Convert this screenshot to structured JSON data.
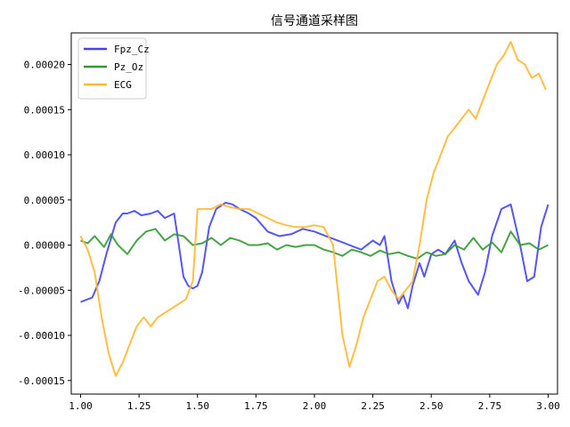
{
  "chart_data": {
    "type": "line",
    "title": "信号通道采样图",
    "xlabel": "",
    "ylabel": "",
    "xlim": [
      0.96,
      3.04
    ],
    "ylim": [
      -0.000165,
      0.000235
    ],
    "xticks": [
      1.0,
      1.25,
      1.5,
      1.75,
      2.0,
      2.25,
      2.5,
      2.75,
      3.0
    ],
    "xtick_labels": [
      "1.00",
      "1.25",
      "1.50",
      "1.75",
      "2.00",
      "2.25",
      "2.50",
      "2.75",
      "3.00"
    ],
    "yticks": [
      -0.00015,
      -0.0001,
      -5e-05,
      0.0,
      5e-05,
      0.0001,
      0.00015,
      0.0002
    ],
    "ytick_labels": [
      "-0.00015",
      "-0.00010",
      "-0.00005",
      "0.00000",
      "0.00005",
      "0.00010",
      "0.00015",
      "0.00020"
    ],
    "grid": false,
    "legend_position": "top-left",
    "series": [
      {
        "name": "Fpz_Cz",
        "color": "#4444ee",
        "x": [
          1.0,
          1.05,
          1.08,
          1.11,
          1.15,
          1.18,
          1.2,
          1.23,
          1.26,
          1.3,
          1.33,
          1.36,
          1.4,
          1.42,
          1.44,
          1.46,
          1.48,
          1.5,
          1.52,
          1.55,
          1.58,
          1.62,
          1.65,
          1.68,
          1.72,
          1.75,
          1.8,
          1.85,
          1.9,
          1.95,
          2.0,
          2.05,
          2.1,
          2.15,
          2.2,
          2.25,
          2.28,
          2.3,
          2.33,
          2.36,
          2.38,
          2.4,
          2.42,
          2.45,
          2.47,
          2.5,
          2.53,
          2.56,
          2.6,
          2.63,
          2.66,
          2.7,
          2.73,
          2.76,
          2.8,
          2.84,
          2.88,
          2.91,
          2.94,
          2.97,
          3.0
        ],
        "y": [
          -6.3e-05,
          -5.8e-05,
          -4e-05,
          -1e-05,
          2.5e-05,
          3.5e-05,
          3.5e-05,
          3.8e-05,
          3.3e-05,
          3.5e-05,
          3.8e-05,
          3e-05,
          3.5e-05,
          0.0,
          -3.5e-05,
          -4.5e-05,
          -4.8e-05,
          -4.5e-05,
          -3e-05,
          2e-05,
          4e-05,
          4.7e-05,
          4.5e-05,
          4e-05,
          3.5e-05,
          3e-05,
          1.5e-05,
          1e-05,
          1.2e-05,
          1.8e-05,
          1.5e-05,
          1e-05,
          5e-06,
          0.0,
          -5e-06,
          5e-06,
          0.0,
          1e-05,
          -4e-05,
          -6.5e-05,
          -5.5e-05,
          -7e-05,
          -4.5e-05,
          -2e-05,
          -3.5e-05,
          -1e-05,
          -5e-06,
          -1e-05,
          5e-06,
          -2e-05,
          -4e-05,
          -5.5e-05,
          -3e-05,
          1e-05,
          4e-05,
          4.5e-05,
          0.0,
          -4e-05,
          -3.5e-05,
          2e-05,
          4.5e-05
        ]
      },
      {
        "name": "Pz_Oz",
        "color": "#339933",
        "x": [
          1.0,
          1.03,
          1.06,
          1.1,
          1.13,
          1.16,
          1.2,
          1.24,
          1.28,
          1.32,
          1.36,
          1.4,
          1.44,
          1.48,
          1.52,
          1.56,
          1.6,
          1.64,
          1.68,
          1.72,
          1.76,
          1.8,
          1.84,
          1.88,
          1.92,
          1.96,
          2.0,
          2.04,
          2.08,
          2.12,
          2.16,
          2.2,
          2.24,
          2.28,
          2.32,
          2.36,
          2.4,
          2.44,
          2.48,
          2.52,
          2.56,
          2.6,
          2.64,
          2.68,
          2.72,
          2.76,
          2.8,
          2.84,
          2.88,
          2.92,
          2.96,
          3.0
        ],
        "y": [
          5e-06,
          2e-06,
          1e-05,
          -2e-06,
          1.2e-05,
          0.0,
          -1e-05,
          5e-06,
          1.5e-05,
          1.8e-05,
          5e-06,
          1.2e-05,
          1e-05,
          0.0,
          2e-06,
          8e-06,
          0.0,
          8e-06,
          5e-06,
          0.0,
          0.0,
          2e-06,
          -5e-06,
          0.0,
          -2e-06,
          0.0,
          0.0,
          -5e-06,
          -8e-06,
          -1.2e-05,
          -5e-06,
          -8e-06,
          -1.2e-05,
          -6e-06,
          -1e-05,
          -8e-06,
          -1.2e-05,
          -1.5e-05,
          -8e-06,
          -1.2e-05,
          -1e-05,
          0.0,
          -5e-06,
          8e-06,
          -5e-06,
          3e-06,
          -8e-06,
          1.5e-05,
          0.0,
          2e-06,
          -5e-06,
          0.0
        ]
      },
      {
        "name": "ECG",
        "color": "#ffb833",
        "x": [
          1.0,
          1.03,
          1.06,
          1.09,
          1.12,
          1.15,
          1.18,
          1.21,
          1.24,
          1.27,
          1.3,
          1.33,
          1.36,
          1.39,
          1.42,
          1.45,
          1.48,
          1.5,
          1.53,
          1.56,
          1.6,
          1.64,
          1.68,
          1.72,
          1.76,
          1.8,
          1.84,
          1.88,
          1.92,
          1.96,
          2.0,
          2.04,
          2.08,
          2.12,
          2.15,
          2.18,
          2.21,
          2.24,
          2.27,
          2.3,
          2.33,
          2.36,
          2.39,
          2.42,
          2.45,
          2.48,
          2.51,
          2.54,
          2.57,
          2.6,
          2.63,
          2.66,
          2.69,
          2.72,
          2.75,
          2.78,
          2.81,
          2.84,
          2.87,
          2.9,
          2.93,
          2.96,
          2.99
        ],
        "y": [
          1e-05,
          -5e-06,
          -3e-05,
          -8e-05,
          -0.00012,
          -0.000145,
          -0.00013,
          -0.00011,
          -9e-05,
          -8e-05,
          -9e-05,
          -8e-05,
          -7.5e-05,
          -7e-05,
          -6.5e-05,
          -6e-05,
          -4e-05,
          4e-05,
          4e-05,
          4e-05,
          4.5e-05,
          4.2e-05,
          4e-05,
          4e-05,
          3.5e-05,
          3e-05,
          2.5e-05,
          2.2e-05,
          2e-05,
          2e-05,
          2.2e-05,
          2e-05,
          0.0,
          -0.0001,
          -0.000135,
          -0.00011,
          -8e-05,
          -6e-05,
          -4e-05,
          -3.5e-05,
          -5e-05,
          -6e-05,
          -5e-05,
          -4e-05,
          0.0,
          5e-05,
          8e-05,
          0.0001,
          0.00012,
          0.00013,
          0.00014,
          0.00015,
          0.00014,
          0.00016,
          0.00018,
          0.0002,
          0.00021,
          0.000225,
          0.000205,
          0.0002,
          0.000185,
          0.00019,
          0.000172
        ]
      }
    ]
  }
}
